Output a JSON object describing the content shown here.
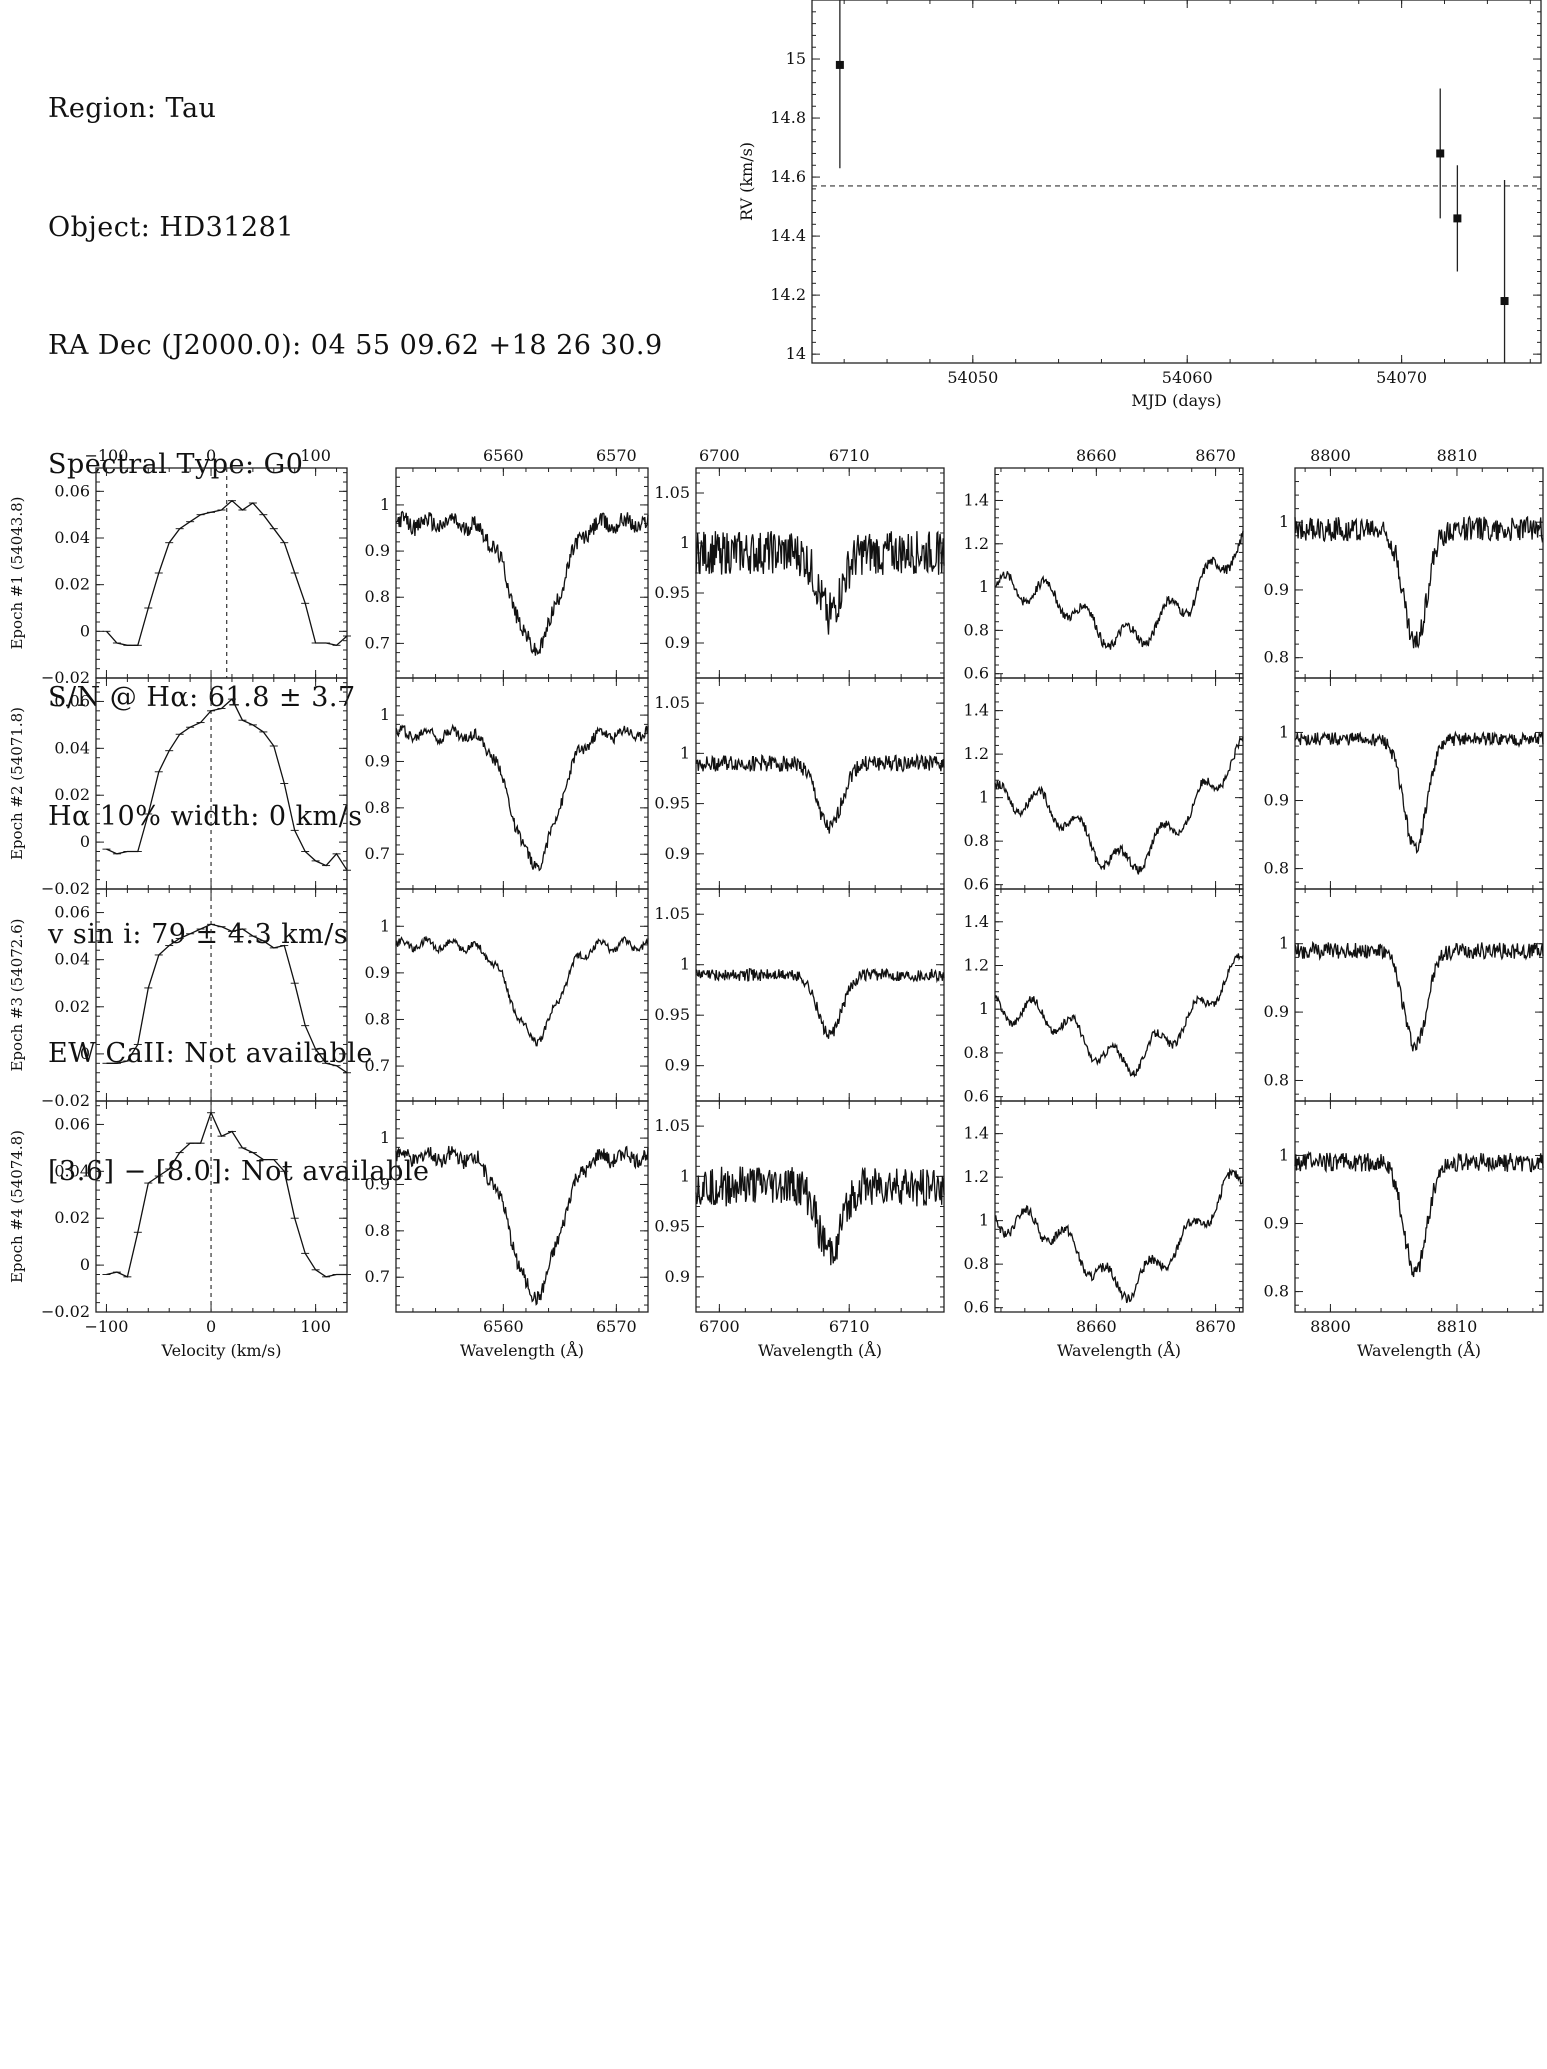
{
  "header": {
    "region": "Region: Tau",
    "object": "Object: HD31281",
    "radec": "RA Dec (J2000.0): 04 55 09.62 +18 26 30.9",
    "sptype": "Spectral Type: G0",
    "sn": "S/N @ Hα: 61.8 ± 3.7",
    "ha_width": "Hα 10% width: 0 km/s",
    "vsini": "v sin i: 79 ± 4.3 km/s",
    "ew_ca": "EW CaII: Not available",
    "irac": "[3.6] − [8.0]: Not available"
  },
  "chart_data": [
    {
      "id": "rv",
      "type": "scatter",
      "xlabel": "MJD (days)",
      "ylabel": "RV (km/s)",
      "xlim": [
        54042.5,
        54076.5
      ],
      "ylim": [
        13.97,
        15.2
      ],
      "xticks": [
        54050,
        54060,
        54070
      ],
      "yticks": [
        14,
        14.2,
        14.4,
        14.6,
        14.8,
        15
      ],
      "points": [
        {
          "x": 54043.8,
          "y": 14.98,
          "err": 0.35
        },
        {
          "x": 54071.8,
          "y": 14.68,
          "err": 0.22
        },
        {
          "x": 54072.6,
          "y": 14.46,
          "err": 0.18
        },
        {
          "x": 54074.8,
          "y": 14.18,
          "err": 0.41
        }
      ],
      "mean_rv": 14.57,
      "grid": false
    },
    {
      "id": "grid",
      "type": "line",
      "epochs": [
        "Epoch #1 (54043.8)",
        "Epoch #2 (54071.8)",
        "Epoch #3 (54072.6)",
        "Epoch #4 (54074.8)"
      ],
      "columns": [
        {
          "name": "ccf",
          "xlabel": "Velocity (km/s)",
          "xlim": [
            -110,
            130
          ],
          "xticks": [
            -100,
            0,
            100
          ],
          "ylim": [
            -0.02,
            0.07
          ],
          "yticks": [
            -0.02,
            0,
            0.02,
            0.04,
            0.06
          ],
          "ccf_x": [
            -100,
            -90,
            -80,
            -70,
            -60,
            -50,
            -40,
            -30,
            -20,
            -10,
            0,
            10,
            20,
            30,
            40,
            50,
            60,
            70,
            80,
            90,
            100,
            110,
            120,
            130
          ],
          "profiles": [
            [
              0.0,
              -0.005,
              -0.006,
              -0.006,
              0.01,
              0.025,
              0.038,
              0.044,
              0.047,
              0.05,
              0.051,
              0.052,
              0.056,
              0.052,
              0.055,
              0.05,
              0.044,
              0.038,
              0.025,
              0.012,
              -0.005,
              -0.005,
              -0.006,
              -0.002
            ],
            [
              -0.003,
              -0.005,
              -0.004,
              -0.004,
              0.012,
              0.03,
              0.039,
              0.046,
              0.049,
              0.051,
              0.056,
              0.057,
              0.061,
              0.052,
              0.05,
              0.047,
              0.041,
              0.025,
              0.005,
              -0.004,
              -0.008,
              -0.01,
              -0.005,
              -0.012
            ],
            [
              -0.004,
              -0.004,
              -0.003,
              0.004,
              0.028,
              0.042,
              0.046,
              0.049,
              0.051,
              0.053,
              0.055,
              0.054,
              0.052,
              0.053,
              0.05,
              0.048,
              0.045,
              0.046,
              0.03,
              0.012,
              0.002,
              -0.004,
              -0.005,
              -0.008
            ],
            [
              -0.004,
              -0.003,
              -0.005,
              0.014,
              0.035,
              0.038,
              0.041,
              0.048,
              0.052,
              0.052,
              0.065,
              0.055,
              0.057,
              0.05,
              0.048,
              0.045,
              0.045,
              0.04,
              0.02,
              0.005,
              -0.002,
              -0.005,
              -0.004,
              -0.004
            ]
          ],
          "vlines": [
            14.98,
            0,
            0,
            0
          ]
        },
        {
          "name": "halpha",
          "xlabel": "Wavelength (Å)",
          "xlim": [
            6550.5,
            6572.8
          ],
          "xticks": [
            6560,
            6570
          ],
          "ylim": [
            0.625,
            1.08
          ],
          "yticks": [
            0.7,
            0.8,
            0.9,
            1
          ],
          "line_center": 6562.8,
          "width": 2.0,
          "depths": [
            0.27,
            0.28,
            0.2,
            0.3
          ],
          "noise": [
            0.018,
            0.012,
            0.008,
            0.016
          ],
          "base": 0.96
        },
        {
          "name": "li",
          "xlabel": "Wavelength (Å)",
          "xlim": [
            6698.2,
            6717.3
          ],
          "xticks": [
            6700,
            6710
          ],
          "ylim": [
            0.865,
            1.075
          ],
          "yticks": [
            0.9,
            0.95,
            1,
            1.05
          ],
          "line_center": 6708.5,
          "width": 0.9,
          "depths": [
            0.06,
            0.065,
            0.06,
            0.065
          ],
          "noise": [
            0.022,
            0.008,
            0.006,
            0.02
          ],
          "base": 0.99
        },
        {
          "name": "ca",
          "xlabel": "Wavelength (Å)",
          "xlim": [
            8651.5,
            8672.3
          ],
          "xticks": [
            8660,
            8670
          ],
          "ylim": [
            0.58,
            1.55
          ],
          "yticks": [
            0.6,
            0.8,
            1,
            1.2,
            1.4
          ],
          "line_center": 8662.3,
          "width": 3.2,
          "depths": [
            0.24,
            0.3,
            0.24,
            0.3
          ],
          "noise": [
            0.022,
            0.02,
            0.018,
            0.022
          ],
          "base": 1.0
        },
        {
          "name": "nir",
          "xlabel": "Wavelength (Å)",
          "xlim": [
            8797.2,
            8816.8
          ],
          "xticks": [
            8800,
            8810
          ],
          "ylim": [
            0.77,
            1.08
          ],
          "yticks": [
            0.8,
            0.9,
            1
          ],
          "line_center": 8806.7,
          "width": 0.9,
          "depths": [
            0.17,
            0.16,
            0.14,
            0.16
          ],
          "noise": [
            0.018,
            0.01,
            0.012,
            0.014
          ],
          "base": 0.99
        }
      ]
    }
  ]
}
